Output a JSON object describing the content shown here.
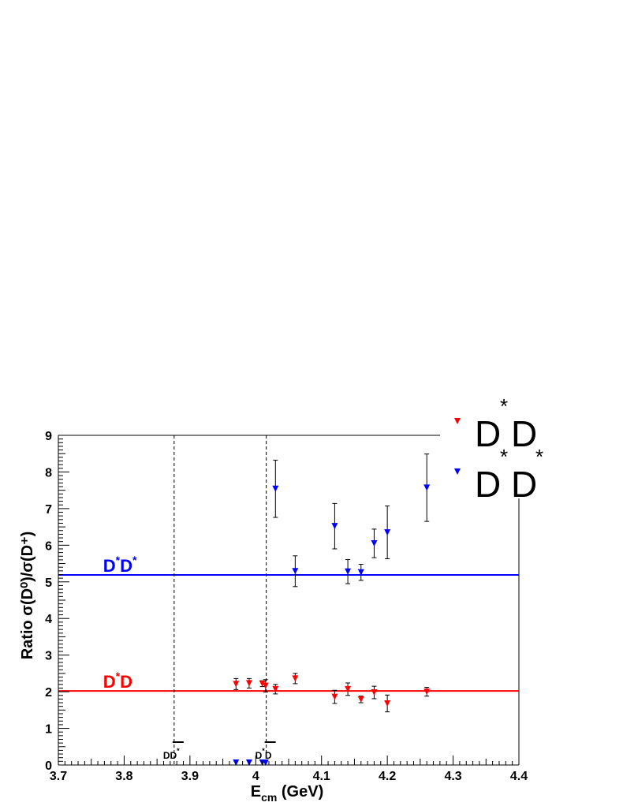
{
  "chart_data": {
    "type": "scatter",
    "xlabel": {
      "main": "E",
      "sub": "cm",
      "unit": " (GeV)"
    },
    "ylabel": "Ratio σ(D⁰)/σ(D⁺)",
    "xlim": [
      3.7,
      4.4
    ],
    "ylim": [
      0,
      9
    ],
    "x_ticks": [
      "3.7",
      "3.8",
      "3.9",
      "4",
      "4.1",
      "4.2",
      "4.3",
      "4.4"
    ],
    "y_ticks": [
      "0",
      "1",
      "2",
      "3",
      "4",
      "5",
      "6",
      "7",
      "8",
      "9"
    ],
    "colors": {
      "dstar_d": "#ff0000",
      "dstar_dstar": "#0000ff",
      "axis": "#000000"
    },
    "reference_lines": [
      {
        "series": "dstar_d",
        "y": 2.02,
        "label_main": "D",
        "label_sup": "*",
        "label_second": "D",
        "label_x": 3.78
      },
      {
        "series": "dstar_dstar",
        "y": 5.19,
        "label_main": "D",
        "label_sup": "*",
        "label_second": "D",
        "label_second_sup": "*",
        "label_x": 3.78
      }
    ],
    "thresholds": [
      {
        "x": 3.876,
        "label_main": "DD",
        "label_sup": "*"
      },
      {
        "x": 4.016,
        "label_main": "D",
        "label_sup": "*",
        "label_second": "D"
      }
    ],
    "series": [
      {
        "key": "dstar_d",
        "x": [
          3.97,
          3.99,
          4.01,
          4.015,
          4.03,
          4.06,
          4.12,
          4.14,
          4.16,
          4.18,
          4.2,
          4.26
        ],
        "y": [
          2.21,
          2.23,
          2.22,
          2.16,
          2.07,
          2.36,
          1.86,
          2.07,
          1.79,
          1.98,
          1.68,
          2.0
        ],
        "err": [
          0.15,
          0.13,
          0.08,
          0.17,
          0.13,
          0.14,
          0.18,
          0.17,
          0.09,
          0.17,
          0.23,
          0.12
        ]
      },
      {
        "key": "dstar_dstar",
        "x": [
          3.97,
          3.99,
          4.01,
          4.015,
          4.03,
          4.06,
          4.12,
          4.14,
          4.16,
          4.18,
          4.2,
          4.26
        ],
        "y": [
          0.0,
          0.0,
          0.0,
          0.0,
          7.54,
          5.29,
          6.52,
          5.28,
          5.26,
          6.05,
          6.35,
          7.57
        ],
        "err": [
          0,
          0,
          0,
          0,
          0.78,
          0.42,
          0.62,
          0.33,
          0.22,
          0.39,
          0.72,
          0.92
        ]
      }
    ],
    "legend": {
      "position": "top-right",
      "entries": [
        {
          "series": "dstar_d",
          "main": "D",
          "sup": "*",
          "second": "D"
        },
        {
          "series": "dstar_dstar",
          "main": "D",
          "sup": "*",
          "second": "D",
          "second_sup": "*"
        }
      ]
    }
  }
}
